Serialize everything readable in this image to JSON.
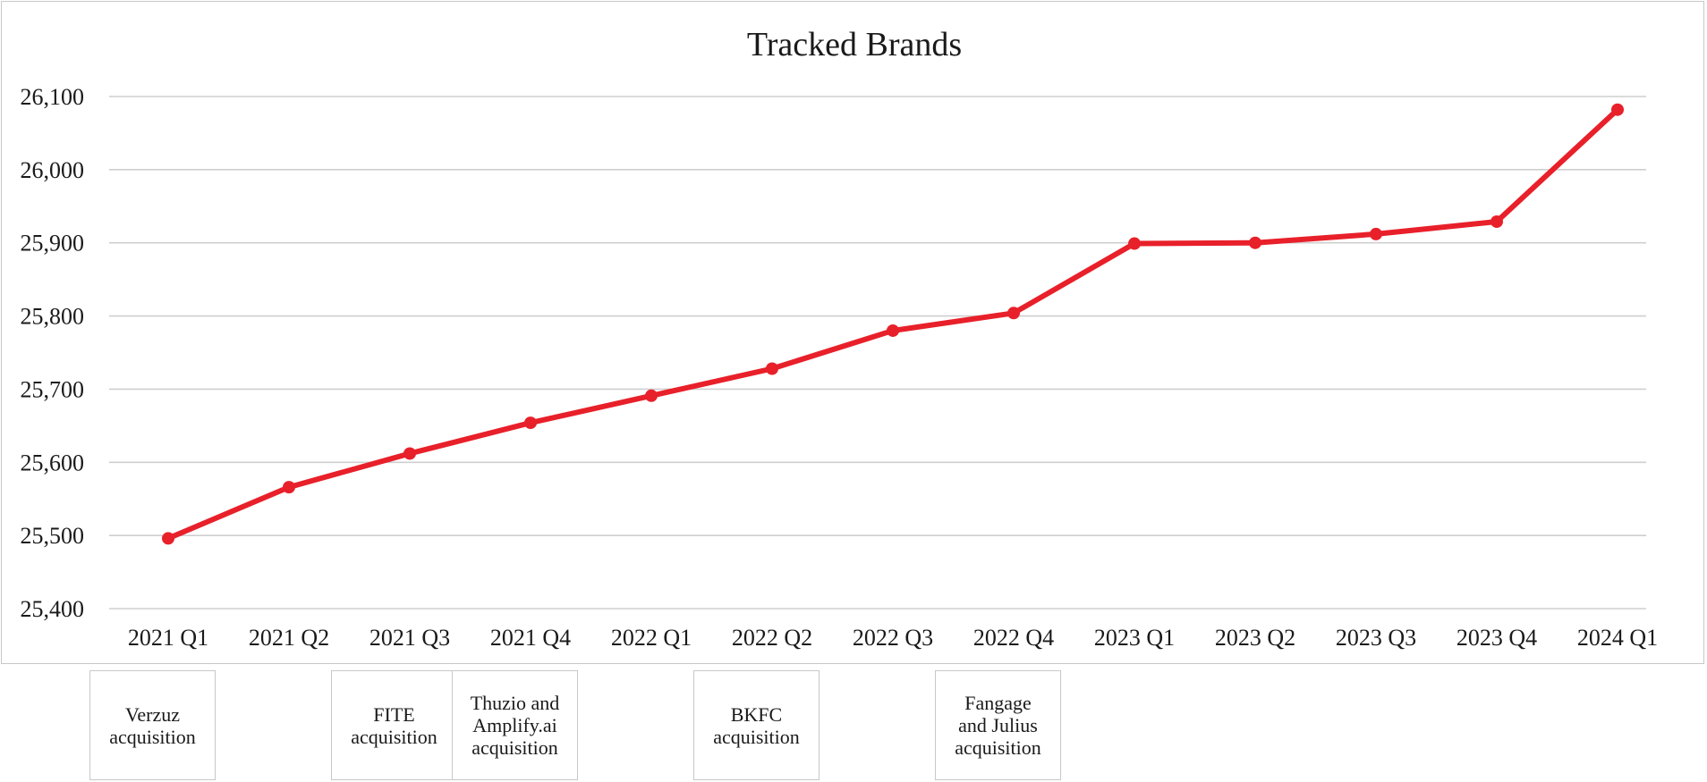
{
  "chart_data": {
    "type": "line",
    "title": "Tracked Brands",
    "xlabel": "",
    "ylabel": "",
    "categories": [
      "2021 Q1",
      "2021 Q2",
      "2021 Q3",
      "2021 Q4",
      "2022 Q1",
      "2022 Q2",
      "2022 Q3",
      "2022 Q4",
      "2023 Q1",
      "2023 Q2",
      "2023 Q3",
      "2023 Q4",
      "2024 Q1"
    ],
    "values": [
      25496,
      25566,
      25612,
      25654,
      25691,
      25728,
      25780,
      25804,
      25899,
      25900,
      25912,
      25929,
      26082
    ],
    "ylim": [
      25400,
      26100
    ],
    "yticks": [
      25400,
      25500,
      25600,
      25700,
      25800,
      25900,
      26000,
      26100
    ],
    "ytick_labels": [
      "25,400",
      "25,500",
      "25,600",
      "25,700",
      "25,800",
      "25,900",
      "26,000",
      "26,100"
    ],
    "grid": true,
    "legend": "none",
    "markers": true,
    "color": "#e8202a"
  },
  "annotations": [
    {
      "category": "2021 Q1",
      "text": "Verzuz\nacquisition"
    },
    {
      "category": "2021 Q3",
      "text": "FITE\nacquisition"
    },
    {
      "category": "2021 Q4",
      "text": "Thuzio and\nAmplify.ai\nacquisition"
    },
    {
      "category": "2022 Q2",
      "text": "BKFC\nacquisition"
    },
    {
      "category": "2022 Q4",
      "text": "Fangage\nand Julius\nacquisition"
    }
  ]
}
